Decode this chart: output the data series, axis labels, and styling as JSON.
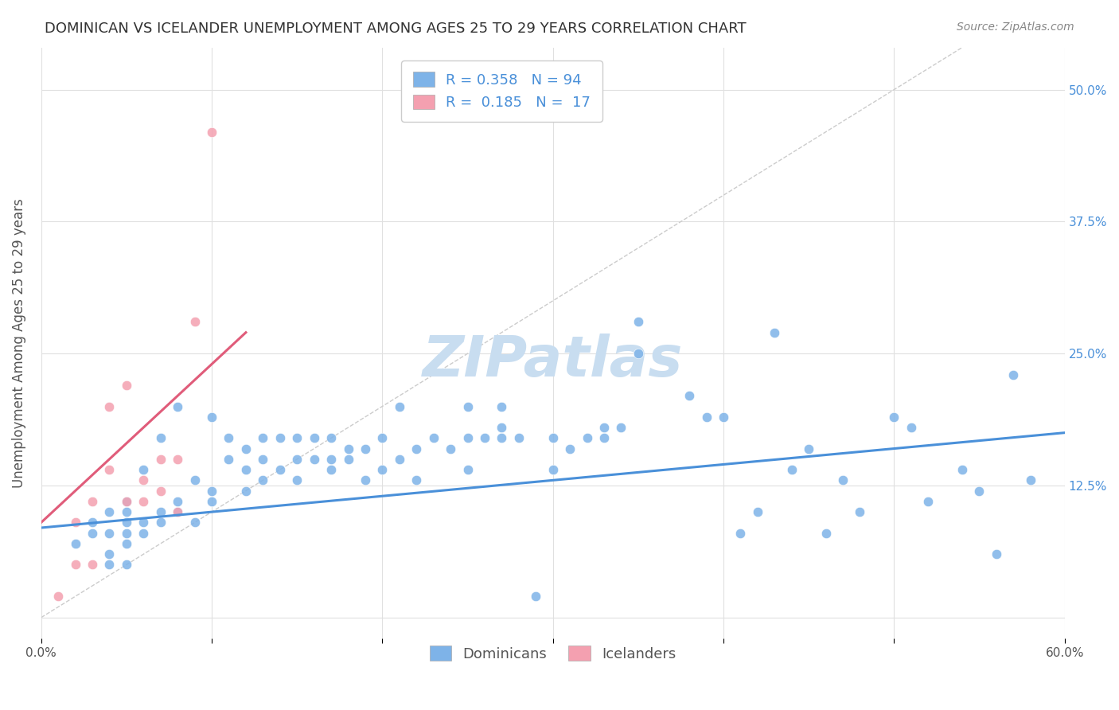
{
  "title": "DOMINICAN VS ICELANDER UNEMPLOYMENT AMONG AGES 25 TO 29 YEARS CORRELATION CHART",
  "source": "Source: ZipAtlas.com",
  "ylabel": "Unemployment Among Ages 25 to 29 years",
  "x_min": 0.0,
  "x_max": 0.6,
  "y_min": -0.02,
  "y_max": 0.54,
  "x_ticks": [
    0.0,
    0.1,
    0.2,
    0.3,
    0.4,
    0.5,
    0.6
  ],
  "y_ticks": [
    0.0,
    0.125,
    0.25,
    0.375,
    0.5
  ],
  "y_tick_labels_right": [
    "",
    "12.5%",
    "25.0%",
    "37.5%",
    "50.0%"
  ],
  "blue_color": "#7eb3e8",
  "pink_color": "#f4a0b0",
  "blue_line_color": "#4a90d9",
  "pink_line_color": "#e05c7a",
  "diagonal_color": "#cccccc",
  "legend_R1": "0.358",
  "legend_N1": "94",
  "legend_R2": "0.185",
  "legend_N2": "17",
  "legend_text_color": "#4a90d9",
  "title_color": "#333333",
  "source_color": "#888888",
  "grid_color": "#e0e0e0",
  "blue_scatter_x": [
    0.02,
    0.03,
    0.03,
    0.04,
    0.04,
    0.04,
    0.04,
    0.05,
    0.05,
    0.05,
    0.05,
    0.05,
    0.05,
    0.06,
    0.06,
    0.06,
    0.07,
    0.07,
    0.07,
    0.08,
    0.08,
    0.08,
    0.09,
    0.09,
    0.1,
    0.1,
    0.1,
    0.11,
    0.11,
    0.12,
    0.12,
    0.12,
    0.13,
    0.13,
    0.13,
    0.14,
    0.14,
    0.15,
    0.15,
    0.15,
    0.16,
    0.16,
    0.17,
    0.17,
    0.17,
    0.18,
    0.18,
    0.19,
    0.19,
    0.2,
    0.2,
    0.21,
    0.21,
    0.22,
    0.22,
    0.23,
    0.24,
    0.25,
    0.25,
    0.25,
    0.26,
    0.27,
    0.27,
    0.27,
    0.28,
    0.3,
    0.3,
    0.31,
    0.32,
    0.33,
    0.33,
    0.34,
    0.35,
    0.35,
    0.38,
    0.39,
    0.4,
    0.41,
    0.42,
    0.44,
    0.45,
    0.46,
    0.47,
    0.48,
    0.5,
    0.51,
    0.52,
    0.54,
    0.55,
    0.56,
    0.57,
    0.58,
    0.43,
    0.29
  ],
  "blue_scatter_y": [
    0.07,
    0.08,
    0.09,
    0.05,
    0.06,
    0.08,
    0.1,
    0.05,
    0.07,
    0.08,
    0.09,
    0.1,
    0.11,
    0.08,
    0.09,
    0.14,
    0.09,
    0.1,
    0.17,
    0.1,
    0.11,
    0.2,
    0.09,
    0.13,
    0.11,
    0.12,
    0.19,
    0.15,
    0.17,
    0.12,
    0.14,
    0.16,
    0.13,
    0.15,
    0.17,
    0.14,
    0.17,
    0.13,
    0.15,
    0.17,
    0.15,
    0.17,
    0.14,
    0.15,
    0.17,
    0.15,
    0.16,
    0.13,
    0.16,
    0.14,
    0.17,
    0.15,
    0.2,
    0.13,
    0.16,
    0.17,
    0.16,
    0.14,
    0.17,
    0.2,
    0.17,
    0.18,
    0.17,
    0.2,
    0.17,
    0.14,
    0.17,
    0.16,
    0.17,
    0.18,
    0.17,
    0.18,
    0.25,
    0.28,
    0.21,
    0.19,
    0.19,
    0.08,
    0.1,
    0.14,
    0.16,
    0.08,
    0.13,
    0.1,
    0.19,
    0.18,
    0.11,
    0.14,
    0.12,
    0.06,
    0.23,
    0.13,
    0.27,
    0.02
  ],
  "pink_scatter_x": [
    0.01,
    0.02,
    0.02,
    0.03,
    0.03,
    0.04,
    0.04,
    0.05,
    0.05,
    0.06,
    0.06,
    0.07,
    0.07,
    0.08,
    0.08,
    0.09,
    0.1
  ],
  "pink_scatter_y": [
    0.02,
    0.05,
    0.09,
    0.05,
    0.11,
    0.14,
    0.2,
    0.11,
    0.22,
    0.11,
    0.13,
    0.15,
    0.12,
    0.15,
    0.1,
    0.28,
    0.46
  ],
  "blue_trend_x": [
    0.0,
    0.6
  ],
  "blue_trend_y": [
    0.085,
    0.175
  ],
  "pink_trend_x": [
    0.0,
    0.12
  ],
  "pink_trend_y": [
    0.09,
    0.27
  ],
  "watermark": "ZIPatlas",
  "watermark_color": "#c8ddf0",
  "figsize": [
    14.06,
    8.92
  ],
  "dpi": 100
}
